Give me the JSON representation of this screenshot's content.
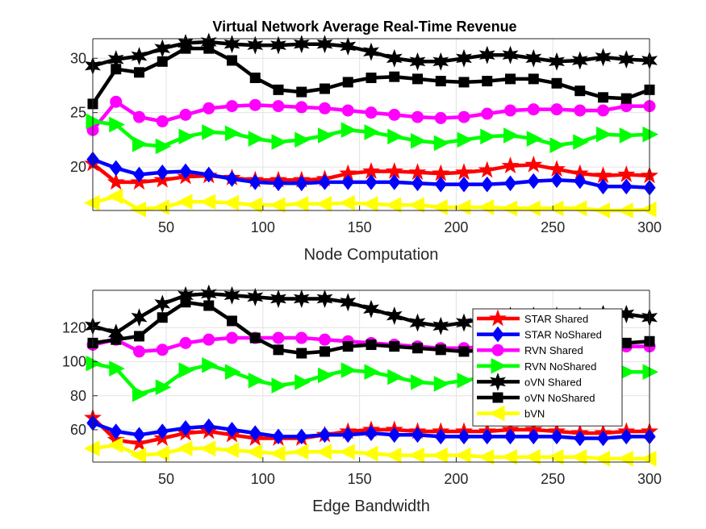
{
  "figure": {
    "title": "Virtual Network Average Real-Time Revenue"
  },
  "chart_data": [
    {
      "type": "line",
      "title": "Virtual Network Average Real-Time Revenue",
      "xlabel": "Node Computation",
      "ylabel": "",
      "xlim": [
        12,
        300
      ],
      "ylim": [
        16,
        31.8
      ],
      "xticks": [
        50,
        100,
        150,
        200,
        250,
        300
      ],
      "yticks": [
        20,
        25,
        30
      ],
      "grid": true,
      "x": [
        12,
        24,
        36,
        48,
        60,
        72,
        84,
        96,
        108,
        120,
        132,
        144,
        156,
        168,
        180,
        192,
        204,
        216,
        228,
        240,
        252,
        264,
        276,
        288,
        300
      ],
      "series": [
        {
          "name": "STAR Shared",
          "color": "#ff0000",
          "marker": "star5",
          "values": [
            20.3,
            18.6,
            18.6,
            18.8,
            19.1,
            19.2,
            19.0,
            18.8,
            18.8,
            18.8,
            18.9,
            19.4,
            19.6,
            19.6,
            19.5,
            19.4,
            19.5,
            19.7,
            20.1,
            20.2,
            19.8,
            19.4,
            19.2,
            19.3,
            19.2
          ]
        },
        {
          "name": "STAR NoShared",
          "color": "#0000ff",
          "marker": "diamond",
          "values": [
            20.7,
            19.9,
            19.3,
            19.5,
            19.6,
            19.3,
            18.9,
            18.6,
            18.5,
            18.5,
            18.6,
            18.6,
            18.6,
            18.6,
            18.5,
            18.4,
            18.4,
            18.4,
            18.5,
            18.7,
            18.8,
            18.7,
            18.2,
            18.2,
            18.1
          ]
        },
        {
          "name": "RVN Shared",
          "color": "#ff00ff",
          "marker": "circle",
          "values": [
            23.4,
            26.0,
            24.6,
            24.2,
            24.8,
            25.4,
            25.6,
            25.7,
            25.6,
            25.5,
            25.4,
            25.2,
            25.0,
            24.8,
            24.6,
            24.5,
            24.6,
            24.9,
            25.2,
            25.3,
            25.3,
            25.2,
            25.2,
            25.6,
            25.6
          ]
        },
        {
          "name": "RVN NoShared",
          "color": "#00ff00",
          "marker": "triangle-right",
          "values": [
            24.2,
            23.9,
            22.1,
            21.9,
            22.8,
            23.2,
            23.1,
            22.6,
            22.3,
            22.5,
            22.9,
            23.4,
            23.2,
            22.8,
            22.4,
            22.2,
            22.5,
            22.8,
            22.9,
            22.6,
            22.0,
            22.3,
            23.0,
            22.9,
            23.0
          ]
        },
        {
          "name": "oVN Shared",
          "color": "#000000",
          "marker": "star6",
          "values": [
            29.3,
            29.9,
            30.2,
            30.9,
            31.4,
            31.5,
            31.3,
            31.2,
            31.2,
            31.3,
            31.3,
            31.1,
            30.6,
            30.0,
            29.7,
            29.7,
            30.0,
            30.3,
            30.3,
            30.0,
            29.7,
            29.8,
            30.1,
            29.9,
            29.8
          ]
        },
        {
          "name": "oVN NoShared",
          "color": "#000000",
          "marker": "square",
          "values": [
            25.8,
            29.0,
            28.7,
            29.7,
            30.9,
            30.9,
            29.8,
            28.2,
            27.1,
            26.9,
            27.2,
            27.8,
            28.2,
            28.3,
            28.1,
            27.9,
            27.8,
            27.9,
            28.1,
            28.1,
            27.7,
            27.0,
            26.4,
            26.3,
            27.1
          ]
        },
        {
          "name": "bVN",
          "color": "#ffff00",
          "marker": "triangle-left",
          "values": [
            16.7,
            17.3,
            16.1,
            16.3,
            16.8,
            16.8,
            16.7,
            16.5,
            16.5,
            16.6,
            16.6,
            16.7,
            16.6,
            16.5,
            16.5,
            16.3,
            16.3,
            16.3,
            16.2,
            16.2,
            16.2,
            16.2,
            16.0,
            16.0,
            16.1
          ]
        }
      ]
    },
    {
      "type": "line",
      "title": "",
      "xlabel": "Edge Bandwidth",
      "ylabel": "",
      "xlim": [
        12,
        300
      ],
      "ylim": [
        41,
        142
      ],
      "xticks": [
        50,
        100,
        150,
        200,
        250,
        300
      ],
      "yticks": [
        60,
        80,
        100,
        120
      ],
      "grid": true,
      "legend": "right",
      "x": [
        12,
        24,
        36,
        48,
        60,
        72,
        84,
        96,
        108,
        120,
        132,
        144,
        156,
        168,
        180,
        192,
        204,
        216,
        228,
        240,
        252,
        264,
        276,
        288,
        300
      ],
      "series": [
        {
          "name": "STAR Shared",
          "color": "#ff0000",
          "marker": "star5",
          "values": [
            67,
            54,
            52,
            55,
            58,
            59,
            57,
            55,
            55,
            55,
            57,
            59,
            60,
            60,
            59,
            59,
            59,
            59,
            60,
            60,
            59,
            58,
            58,
            59,
            59
          ]
        },
        {
          "name": "STAR NoShared",
          "color": "#0000ff",
          "marker": "diamond",
          "values": [
            64,
            59,
            57,
            59,
            61,
            62,
            60,
            58,
            56,
            56,
            57,
            57,
            58,
            57,
            57,
            56,
            56,
            56,
            56,
            56,
            56,
            55,
            55,
            56,
            56
          ]
        },
        {
          "name": "RVN Shared",
          "color": "#ff00ff",
          "marker": "circle",
          "values": [
            110,
            113,
            106,
            107,
            111,
            113,
            114,
            114,
            114,
            114,
            113,
            112,
            111,
            110,
            109,
            108,
            108,
            109,
            109,
            109,
            109,
            109,
            109,
            109,
            109
          ]
        },
        {
          "name": "RVN NoShared",
          "color": "#00ff00",
          "marker": "triangle-right",
          "values": [
            99,
            96,
            81,
            85,
            95,
            98,
            94,
            89,
            86,
            88,
            92,
            95,
            94,
            91,
            88,
            87,
            89,
            91,
            93,
            94,
            93,
            93,
            93,
            94,
            94
          ]
        },
        {
          "name": "oVN Shared",
          "color": "#000000",
          "marker": "star6",
          "values": [
            121,
            117,
            126,
            134,
            139,
            140,
            139,
            138,
            137,
            137,
            137,
            135,
            131,
            127,
            123,
            121,
            123,
            126,
            127,
            127,
            127,
            127,
            128,
            128,
            126
          ]
        },
        {
          "name": "oVN NoShared",
          "color": "#000000",
          "marker": "square",
          "values": [
            111,
            113,
            115,
            126,
            135,
            133,
            124,
            114,
            107,
            105,
            106,
            109,
            110,
            109,
            108,
            107,
            106,
            107,
            108,
            109,
            109,
            110,
            110,
            111,
            112
          ]
        },
        {
          "name": "bVN",
          "color": "#ffff00",
          "marker": "triangle-left",
          "values": [
            49,
            51,
            45,
            46,
            49,
            49,
            48,
            47,
            46,
            47,
            47,
            47,
            46,
            45,
            45,
            45,
            45,
            44,
            44,
            44,
            44,
            44,
            43,
            43,
            43
          ]
        }
      ]
    }
  ]
}
